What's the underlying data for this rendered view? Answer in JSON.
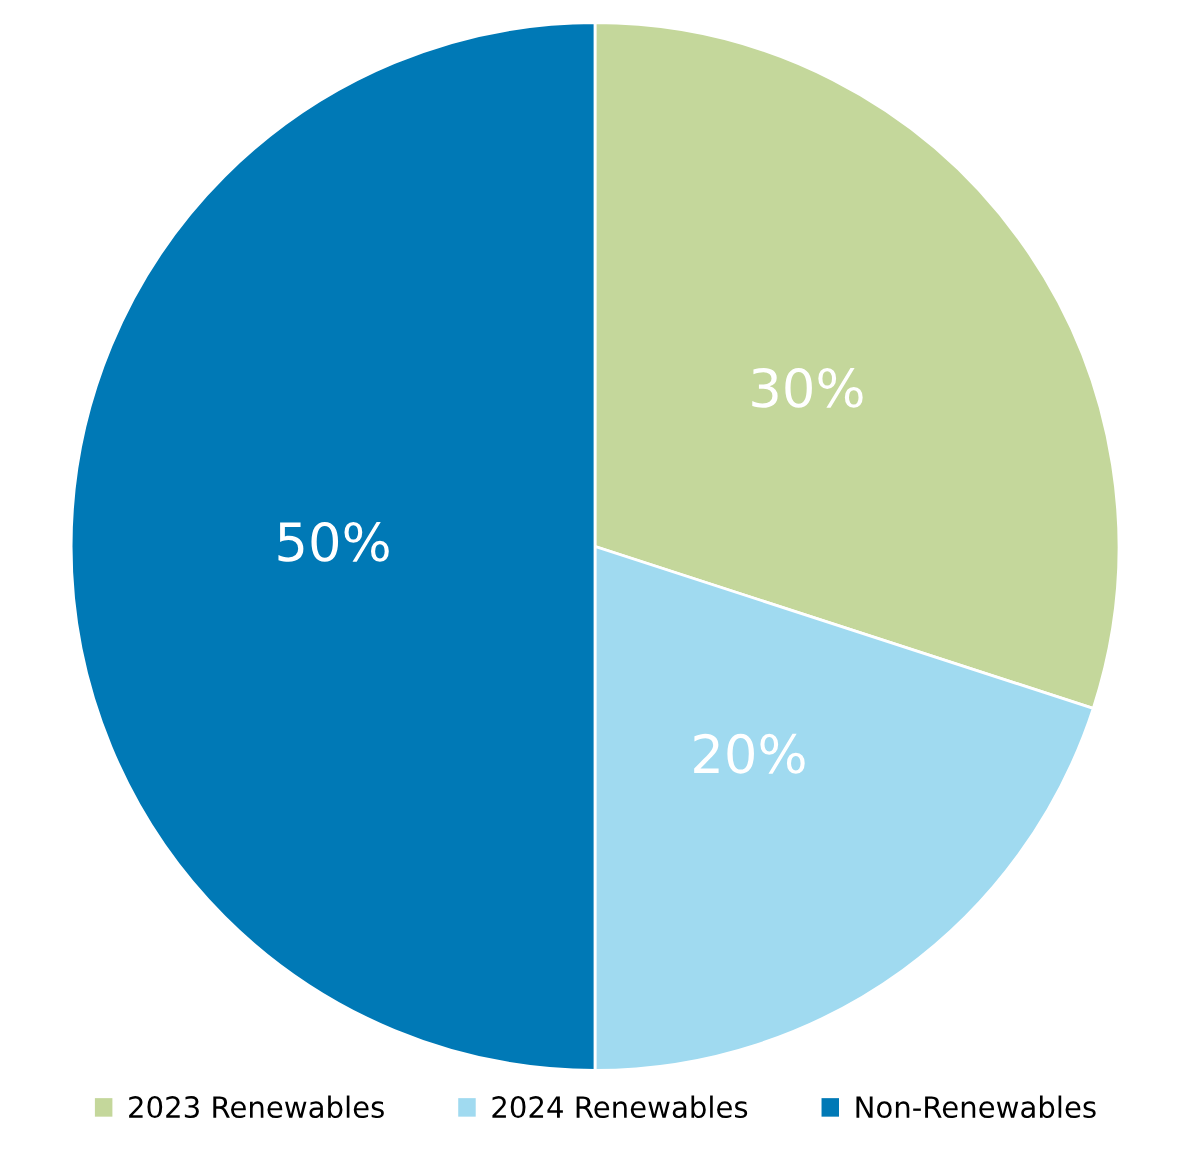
{
  "chart_data": {
    "type": "pie",
    "categories": [
      "2023 Renewables",
      "2024 Renewables",
      "Non-Renewables"
    ],
    "values": [
      30,
      20,
      50
    ],
    "colors": [
      "#c4d79b",
      "#a0daf0",
      "#0079b6"
    ],
    "value_labels": [
      "30%",
      "20%",
      "50%"
    ],
    "legend": "bottom"
  }
}
